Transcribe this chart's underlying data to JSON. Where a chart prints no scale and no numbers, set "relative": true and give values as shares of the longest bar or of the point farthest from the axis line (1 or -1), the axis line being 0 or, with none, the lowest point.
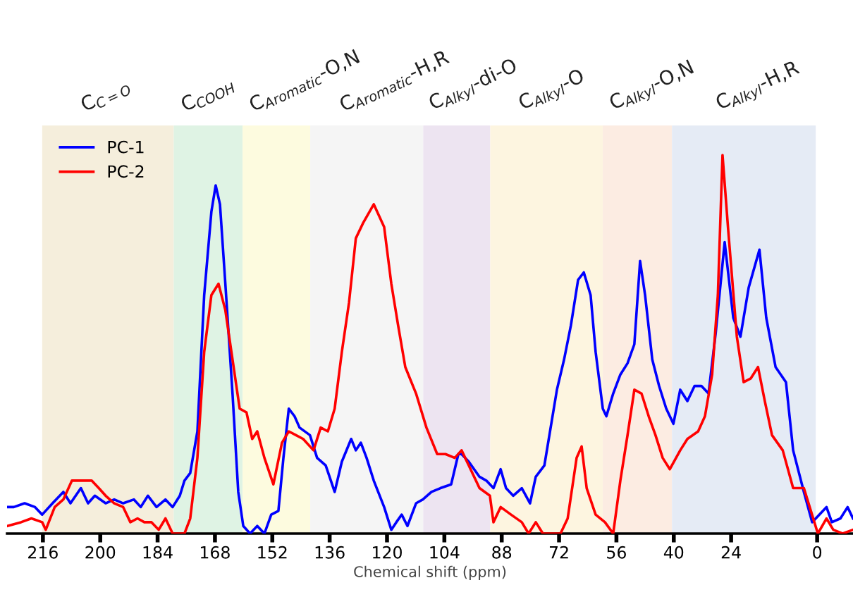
{
  "chart_data": {
    "type": "line",
    "xlabel": "Chemical shift (ppm)",
    "relative": true,
    "legend": "top left",
    "grid": false,
    "marker": "none",
    "line_style": "solid",
    "xlim": [
      226,
      -10
    ],
    "xticks": [
      216,
      200,
      184,
      168,
      152,
      136,
      120,
      104,
      88,
      72,
      56,
      40,
      24,
      0
    ],
    "bands": [
      {
        "axis": "x",
        "from": 216.2,
        "to": 179.5,
        "label": "C$_{C=O}$",
        "color": "#f5eedc"
      },
      {
        "axis": "x",
        "from": 179.5,
        "to": 160.3,
        "label": "C$_{COOH}$",
        "color": "#dff3e4"
      },
      {
        "axis": "x",
        "from": 160.3,
        "to": 141.4,
        "label": "C$_{Aromatic}$-O,N",
        "color": "#fdfbdf"
      },
      {
        "axis": "x",
        "from": 141.4,
        "to": 109.9,
        "label": "C$_{Aromatic}$-H,R",
        "color": "#f5f5f5"
      },
      {
        "axis": "x",
        "from": 109.9,
        "to": 91.2,
        "label": "C$_{Alkyl}$-di-O",
        "color": "#ede4f1"
      },
      {
        "axis": "x",
        "from": 91.2,
        "to": 59.8,
        "label": "C$_{Alkyl}$-O",
        "color": "#fdf5e0"
      },
      {
        "axis": "x",
        "from": 59.8,
        "to": 40.5,
        "label": "C$_{Alkyl}$-O,N",
        "color": "#fcece2"
      },
      {
        "axis": "x",
        "from": 40.5,
        "to": 0.4,
        "label": "C$_{Alkyl}$-H,R",
        "color": "#e5ebf5"
      }
    ],
    "series": [
      {
        "name": "PC-1",
        "color": "#0000ff",
        "x": [
          226.0,
          224.1,
          221.1,
          218.2,
          216.2,
          213.3,
          210.3,
          208.3,
          205.4,
          203.4,
          201.5,
          198.5,
          196.1,
          193.6,
          190.6,
          188.7,
          186.7,
          184.3,
          181.8,
          179.8,
          177.8,
          176.5,
          174.9,
          172.9,
          171.0,
          169.0,
          167.8,
          166.6,
          165.1,
          163.1,
          161.5,
          160.1,
          158.2,
          156.2,
          154.2,
          152.3,
          150.3,
          148.9,
          147.4,
          145.8,
          144.4,
          141.5,
          139.5,
          137.1,
          134.6,
          132.6,
          130.0,
          128.7,
          127.3,
          125.7,
          123.7,
          120.8,
          118.8,
          117.4,
          115.9,
          114.3,
          111.9,
          110.0,
          107.6,
          105.1,
          102.1,
          100.1,
          99.2,
          97.2,
          94.2,
          92.3,
          90.3,
          88.3,
          86.8,
          84.8,
          82.4,
          80.1,
          78.5,
          76.1,
          72.6,
          70.6,
          68.7,
          66.7,
          65.1,
          63.2,
          61.8,
          59.8,
          58.8,
          56.9,
          54.9,
          52.9,
          51.0,
          49.4,
          48.0,
          46.0,
          44.1,
          42.1,
          40.1,
          38.2,
          36.2,
          34.2,
          32.3,
          30.3,
          28.3,
          25.8,
          23.4,
          21.4,
          19.1,
          16.1,
          14.2,
          11.6,
          8.7,
          6.7,
          3.7,
          1.4,
          -0.6,
          -2.6,
          -4.1,
          -6.5,
          -8.5,
          -10.0
        ],
        "values": [
          0.07,
          0.07,
          0.08,
          0.07,
          0.05,
          0.08,
          0.11,
          0.08,
          0.12,
          0.08,
          0.1,
          0.08,
          0.09,
          0.08,
          0.09,
          0.07,
          0.1,
          0.07,
          0.09,
          0.07,
          0.1,
          0.14,
          0.16,
          0.27,
          0.63,
          0.85,
          0.92,
          0.87,
          0.66,
          0.37,
          0.11,
          0.02,
          0.0,
          0.02,
          0.0,
          0.05,
          0.06,
          0.2,
          0.33,
          0.31,
          0.28,
          0.26,
          0.2,
          0.18,
          0.11,
          0.19,
          0.25,
          0.22,
          0.24,
          0.2,
          0.14,
          0.07,
          0.01,
          0.03,
          0.05,
          0.02,
          0.08,
          0.09,
          0.11,
          0.12,
          0.13,
          0.21,
          0.21,
          0.19,
          0.15,
          0.14,
          0.12,
          0.17,
          0.12,
          0.1,
          0.12,
          0.08,
          0.15,
          0.18,
          0.38,
          0.46,
          0.55,
          0.67,
          0.69,
          0.63,
          0.48,
          0.33,
          0.31,
          0.37,
          0.42,
          0.45,
          0.5,
          0.72,
          0.63,
          0.46,
          0.39,
          0.33,
          0.29,
          0.38,
          0.35,
          0.39,
          0.39,
          0.37,
          0.53,
          0.77,
          0.57,
          0.52,
          0.65,
          0.75,
          0.57,
          0.44,
          0.4,
          0.22,
          0.11,
          0.03,
          0.05,
          0.07,
          0.03,
          0.04,
          0.07,
          0.04
        ]
      },
      {
        "name": "PC-2",
        "color": "#ff0000",
        "x": [
          226.0,
          222.1,
          219.2,
          216.2,
          215.2,
          212.7,
          210.3,
          207.9,
          206.0,
          204.4,
          202.4,
          200.4,
          198.5,
          196.1,
          193.6,
          191.6,
          189.6,
          187.7,
          185.7,
          183.7,
          181.8,
          179.8,
          176.5,
          174.9,
          172.9,
          171.0,
          169.0,
          167.0,
          165.1,
          163.1,
          161.1,
          159.2,
          157.6,
          156.2,
          154.2,
          151.7,
          149.3,
          147.4,
          145.4,
          143.4,
          140.5,
          138.5,
          136.5,
          134.6,
          132.6,
          130.6,
          128.7,
          126.7,
          123.7,
          120.8,
          118.8,
          116.9,
          114.9,
          111.9,
          109.0,
          106.0,
          103.7,
          101.1,
          99.2,
          97.2,
          94.2,
          91.3,
          90.3,
          88.3,
          85.4,
          82.4,
          80.5,
          78.5,
          76.5,
          73.6,
          71.6,
          69.6,
          67.1,
          65.7,
          64.3,
          61.8,
          59.2,
          56.9,
          54.9,
          52.9,
          51.0,
          49.0,
          47.0,
          45.1,
          43.1,
          41.1,
          38.2,
          36.2,
          33.2,
          31.3,
          29.3,
          27.7,
          26.4,
          24.8,
          22.4,
          20.5,
          18.5,
          16.5,
          14.6,
          12.6,
          9.6,
          6.7,
          3.7,
          -0.2,
          -2.6,
          -4.5,
          -7.1,
          -10.0
        ],
        "values": [
          0.02,
          0.03,
          0.04,
          0.03,
          0.01,
          0.07,
          0.09,
          0.14,
          0.14,
          0.14,
          0.14,
          0.12,
          0.1,
          0.08,
          0.07,
          0.03,
          0.04,
          0.03,
          0.03,
          0.01,
          0.04,
          0.0,
          0.0,
          0.04,
          0.2,
          0.48,
          0.63,
          0.66,
          0.59,
          0.46,
          0.33,
          0.32,
          0.25,
          0.27,
          0.2,
          0.13,
          0.24,
          0.27,
          0.26,
          0.25,
          0.22,
          0.28,
          0.27,
          0.33,
          0.48,
          0.61,
          0.78,
          0.82,
          0.87,
          0.81,
          0.66,
          0.55,
          0.44,
          0.37,
          0.28,
          0.21,
          0.21,
          0.2,
          0.22,
          0.18,
          0.12,
          0.1,
          0.03,
          0.07,
          0.05,
          0.03,
          0.0,
          0.03,
          0.0,
          0.0,
          0.0,
          0.04,
          0.2,
          0.23,
          0.12,
          0.05,
          0.03,
          0.0,
          0.14,
          0.26,
          0.38,
          0.37,
          0.31,
          0.26,
          0.2,
          0.17,
          0.22,
          0.25,
          0.27,
          0.31,
          0.42,
          0.63,
          1.0,
          0.8,
          0.52,
          0.4,
          0.41,
          0.44,
          0.35,
          0.26,
          0.22,
          0.12,
          0.12,
          0.0,
          0.04,
          0.01,
          0.0,
          0.01
        ]
      }
    ]
  }
}
